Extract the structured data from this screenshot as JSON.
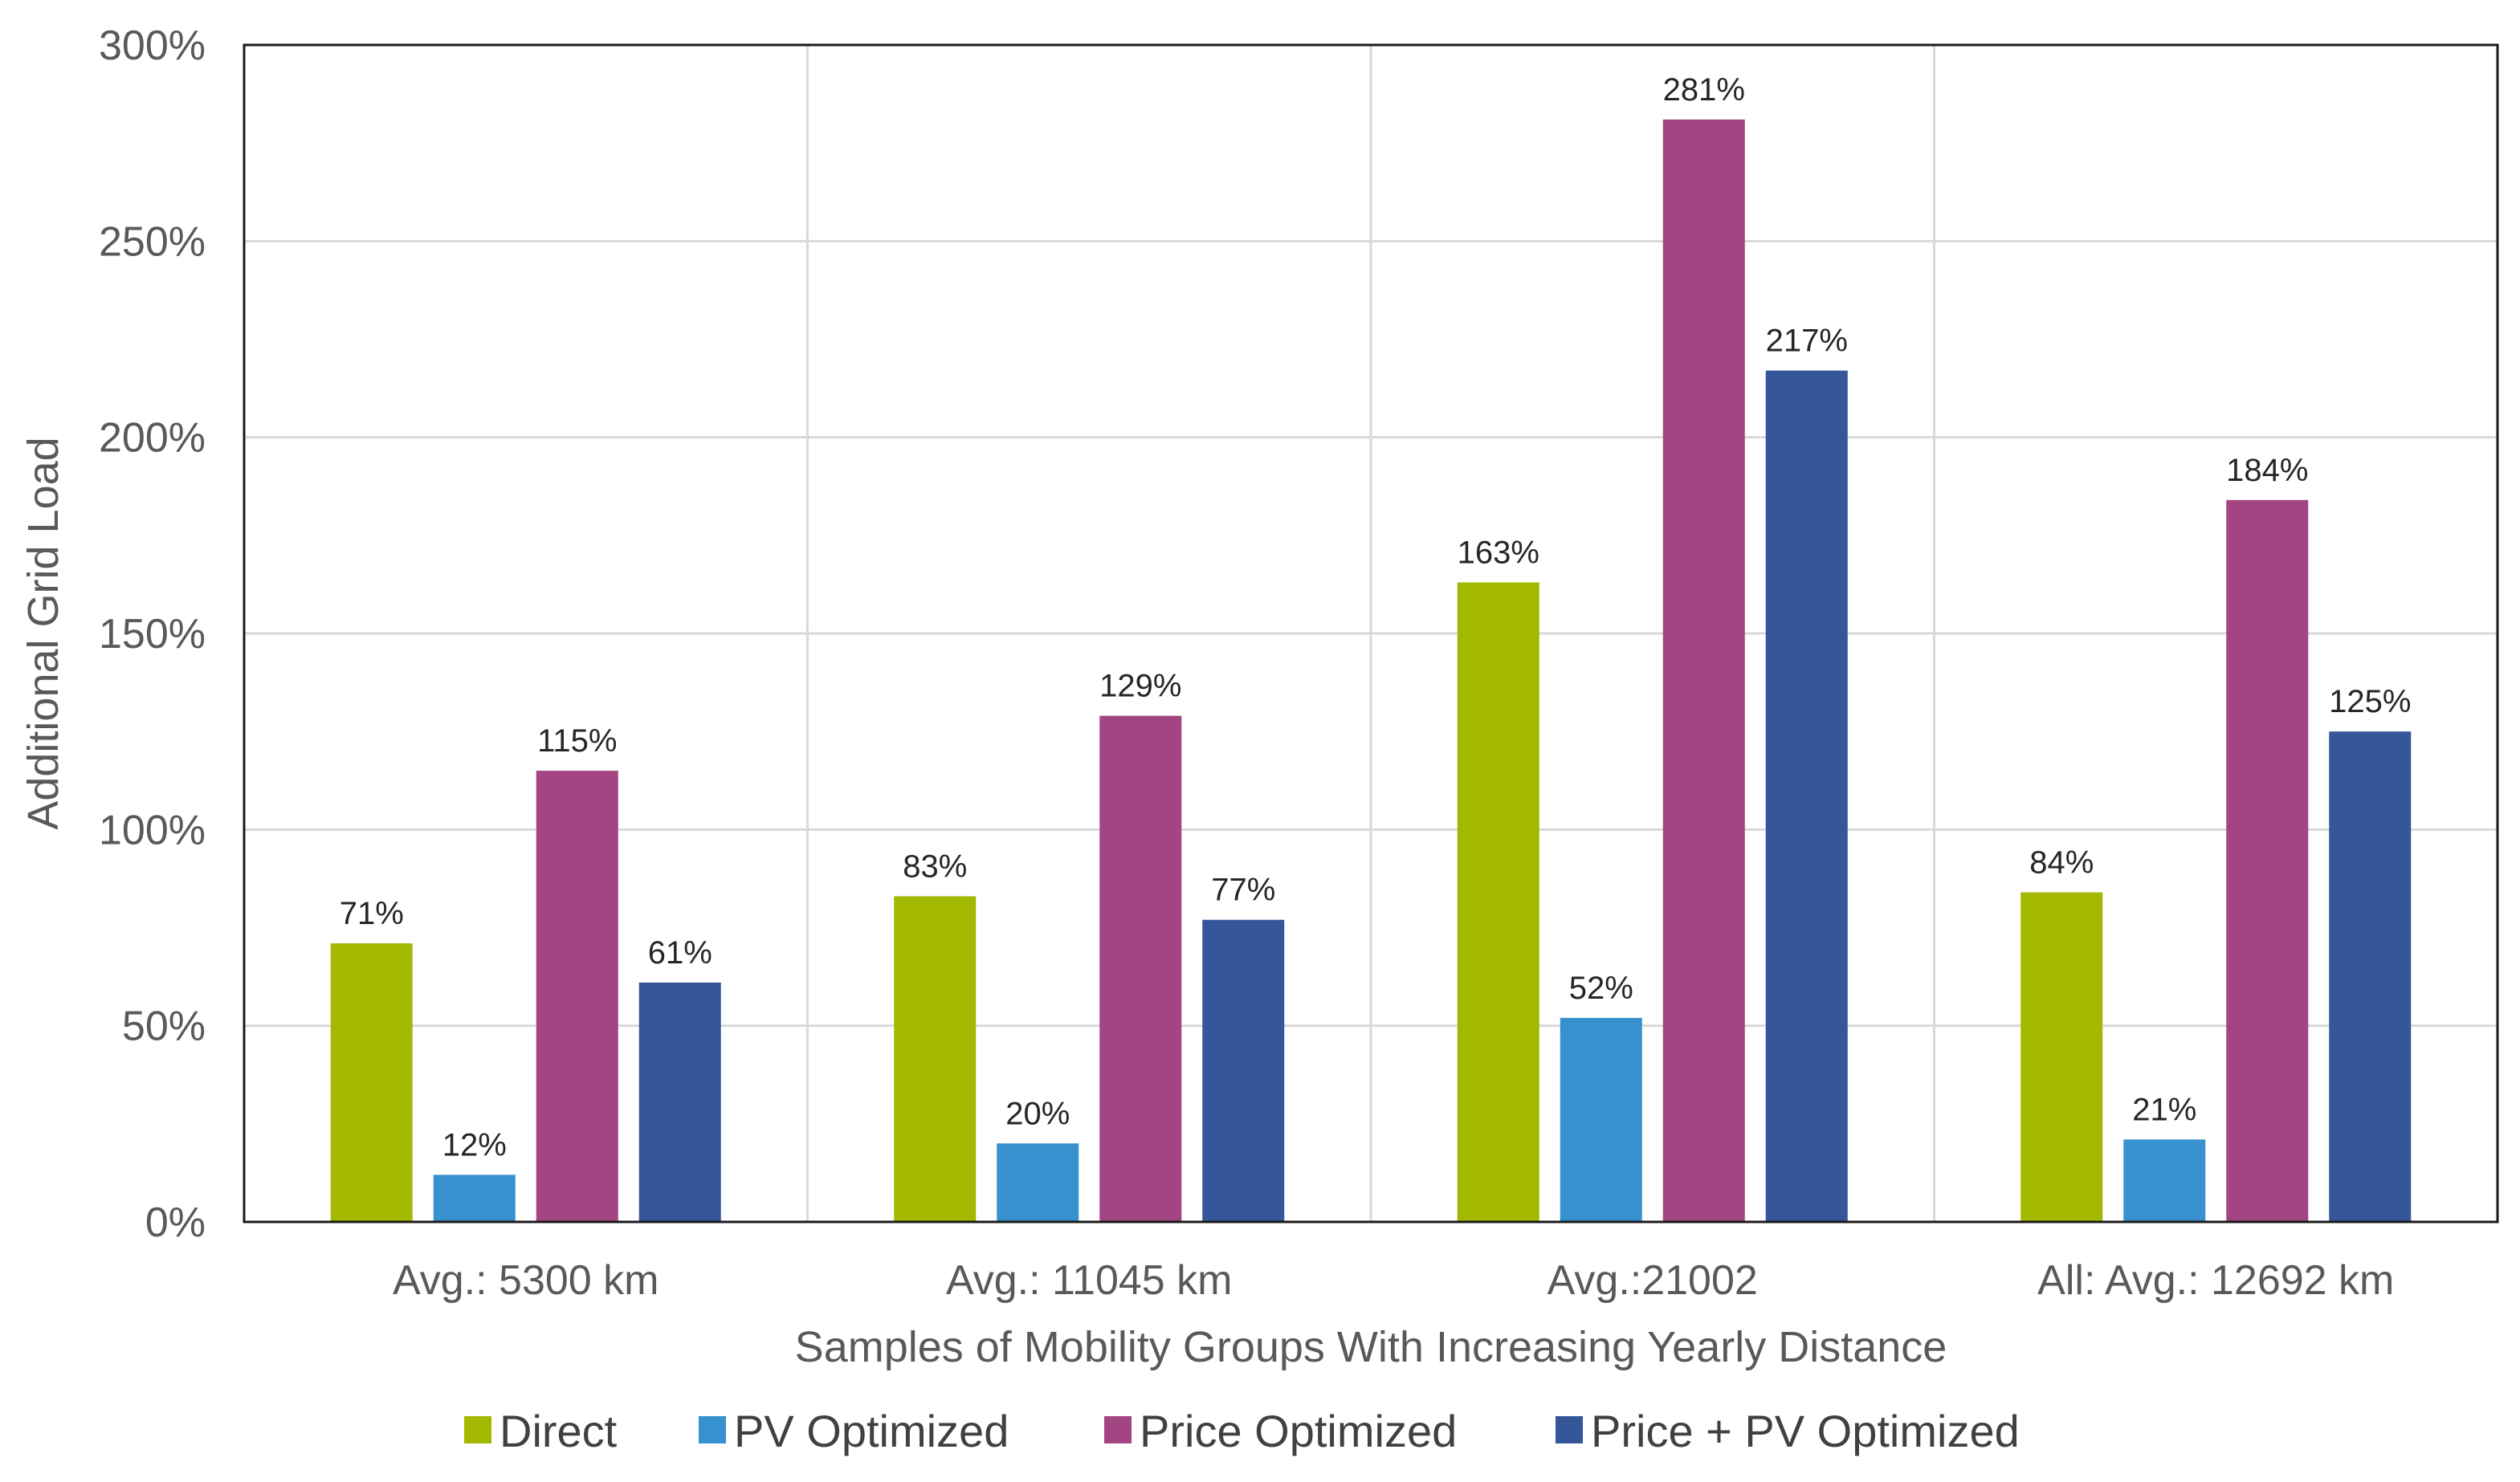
{
  "chart_data": {
    "type": "bar",
    "title": "",
    "xlabel": "Samples of Mobility Groups With Increasing Yearly Distance",
    "ylabel": "Additional Grid Load",
    "ylim": [
      0,
      300
    ],
    "yticks": [
      0,
      50,
      100,
      150,
      200,
      250,
      300
    ],
    "ytick_labels": [
      "0%",
      "50%",
      "100%",
      "150%",
      "200%",
      "250%",
      "300%"
    ],
    "value_suffix": "%",
    "grid": true,
    "legend_position": "bottom",
    "categories": [
      "Avg.: 5300 km",
      "Avg.: 11045 km",
      "Avg.:21002",
      "All: Avg.: 12692 km"
    ],
    "series": [
      {
        "name": "Direct",
        "color": "#a3b800",
        "values": [
          71,
          83,
          163,
          84
        ]
      },
      {
        "name": "PV Optimized",
        "color": "#3791cf",
        "values": [
          12,
          20,
          52,
          21
        ]
      },
      {
        "name": "Price Optimized",
        "color": "#a34582",
        "values": [
          115,
          129,
          281,
          184
        ]
      },
      {
        "name": "Price + PV Optimized",
        "color": "#355799",
        "values": [
          61,
          77,
          217,
          125
        ]
      }
    ]
  }
}
